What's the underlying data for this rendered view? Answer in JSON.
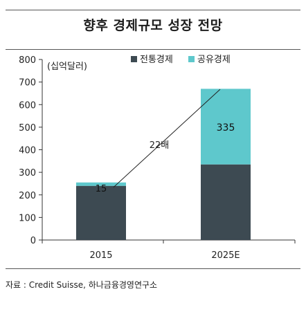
{
  "title": "향후 경제규모 성장 전망",
  "source": "자료 : Credit Suisse, 하나금융경영연구소",
  "colors": {
    "traditional": "#3d4a52",
    "sharing": "#5ec8cc",
    "axis": "#333333",
    "text": "#222222"
  },
  "chart_data": {
    "type": "bar",
    "stacked": true,
    "categories": [
      "2015",
      "2025E"
    ],
    "series": [
      {
        "name": "전통경제",
        "values": [
          240,
          335
        ]
      },
      {
        "name": "공유경제",
        "values": [
          15,
          335
        ]
      }
    ],
    "ylim": [
      0,
      800
    ],
    "yticks": [
      "0",
      "100",
      "200",
      "300",
      "400",
      "500",
      "600",
      "700",
      "800"
    ],
    "ylabel": "(십억달러)",
    "legend_position": "top",
    "data_labels": {
      "2015_sharing": "15",
      "2025E_sharing": "335"
    },
    "annotation": {
      "text": "22배",
      "type": "growth-line"
    },
    "grid": false
  }
}
